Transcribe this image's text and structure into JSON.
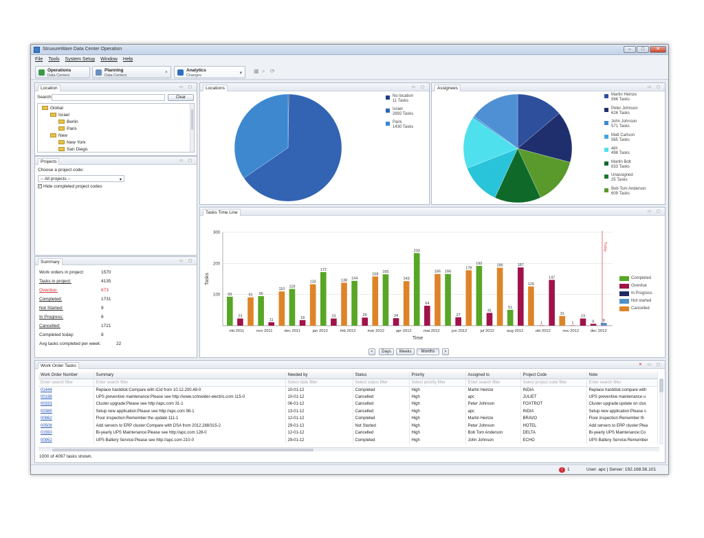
{
  "window": {
    "title": "StruxureWare Data Center Operation",
    "min": "–",
    "max": "□",
    "close": "✕"
  },
  "menu": [
    "File",
    "Tools",
    "System Setup",
    "Window",
    "Help"
  ],
  "perspectives": [
    {
      "title": "Operations",
      "sub": "Data Centers",
      "color": "#3a9a4a"
    },
    {
      "title": "Planning",
      "sub": "Data Centers",
      "color": "#6a8fc0"
    },
    {
      "title": "Analytics",
      "sub": "Changes",
      "color": "#2f6fc2"
    }
  ],
  "location_panel": {
    "tab": "Location",
    "search_label": "Search",
    "clear_btn": "Clear",
    "tree": [
      {
        "label": "Global",
        "level": 0
      },
      {
        "label": "Israel",
        "level": 1
      },
      {
        "label": "Berlin",
        "level": 2
      },
      {
        "label": "Paris",
        "level": 2
      },
      {
        "label": "New",
        "level": 1
      },
      {
        "label": "New York",
        "level": 2
      },
      {
        "label": "San Diego",
        "level": 2
      }
    ]
  },
  "projects_panel": {
    "tab": "Projects",
    "choose_label": "Choose a project code:",
    "select_value": "-- All projects --",
    "hide_completed": "Hide completed project codes"
  },
  "summary_panel": {
    "tab": "Summary",
    "rows": [
      {
        "k": "Work orders in project:",
        "v": "1570"
      },
      {
        "k": "Tasks in project:",
        "v": "4135"
      },
      {
        "k": "Overdue:",
        "v": "673"
      },
      {
        "k": "Completed:",
        "v": "1731"
      },
      {
        "k": "Not Started:",
        "v": "9"
      },
      {
        "k": "In Progress:",
        "v": "8"
      },
      {
        "k": "Cancelled:",
        "v": "1721"
      },
      {
        "k": "Completed today:",
        "v": "8"
      },
      {
        "k": "Avg tasks completed per week:",
        "v": "22"
      }
    ]
  },
  "locations_chart": {
    "tab": "Locations",
    "chart_data": {
      "type": "pie",
      "slices": [
        {
          "label": "No location",
          "sub": "11 Tasks",
          "value": 11,
          "color": "#1f3f86"
        },
        {
          "label": "Israel",
          "sub": "2692 Tasks",
          "value": 2692,
          "color": "#3264b3"
        },
        {
          "label": "Paris",
          "sub": "1430 Tasks",
          "value": 1430,
          "color": "#3d88cf"
        }
      ]
    }
  },
  "assignees_chart": {
    "tab": "Assignees",
    "chart_data": {
      "type": "pie",
      "slices": [
        {
          "label": "Martin Heinze",
          "sub": "566 Tasks",
          "value": 566,
          "color": "#2d4f9c"
        },
        {
          "label": "Peter Johnson",
          "sub": "626 Tasks",
          "value": 626,
          "color": "#1f2f6e"
        },
        {
          "label": "John Johnson",
          "sub": "571 Tasks",
          "value": 571,
          "color": "#5a9a2c"
        },
        {
          "label": "Matt Carlson",
          "sub": "565 Tasks",
          "value": 565,
          "color": "#0f6a2a"
        },
        {
          "label": "apc",
          "sub": "498 Tasks",
          "value": 498,
          "color": "#29c4d9"
        },
        {
          "label": "Martin Bolt",
          "sub": "633 Tasks",
          "value": 633,
          "color": "#4fe0ee"
        },
        {
          "label": "Unassigned",
          "sub": "25 Tasks",
          "value": 25,
          "color": "#46a4dc"
        },
        {
          "label": "Bob Tom Anderson",
          "sub": "609 Tasks",
          "value": 609,
          "color": "#4f90d4"
        }
      ],
      "legend_order": [
        {
          "label": "Martin Heinze",
          "sub": "566 Tasks",
          "color": "#2d4f9c"
        },
        {
          "label": "Peter Johnson",
          "sub": "626 Tasks",
          "color": "#1f2f6e"
        },
        {
          "label": "John Johnson",
          "sub": "571 Tasks",
          "color": "#3d88cf"
        },
        {
          "label": "Matt Carlson",
          "sub": "565 Tasks",
          "color": "#46a4dc"
        },
        {
          "label": "apc",
          "sub": "498 Tasks",
          "color": "#4fe0ee"
        },
        {
          "label": "Martin Bolt",
          "sub": "633 Tasks",
          "color": "#0f6a2a"
        },
        {
          "label": "Unassigned",
          "sub": "25 Tasks",
          "color": "#1a7a30"
        },
        {
          "label": "Bob Tom Anderson",
          "sub": "609 Tasks",
          "color": "#5a9a2c"
        }
      ]
    }
  },
  "timeline_chart": {
    "tab": "Tasks Time Line",
    "today_label": "Today",
    "buttons": {
      "prev": "<",
      "days": "Days",
      "weeks": "Weeks",
      "months": "Months",
      "next": ">"
    },
    "chart_data": {
      "type": "bar",
      "xlabel": "Time",
      "ylabel": "Tasks",
      "ylim": [
        0,
        300
      ],
      "yticks": [
        100,
        200,
        300
      ],
      "categories": [
        "okt 2011",
        "nov 2011",
        "dec 2011",
        "jan 2012",
        "feb 2012",
        "mar 2012",
        "apr 2012",
        "mai 2012",
        "jun 2012",
        "jul 2012",
        "aug 2012",
        "okt 2012",
        "nov 2012",
        "dec 2012"
      ],
      "series": [
        {
          "name": "Completed",
          "color": "#58a626"
        },
        {
          "name": "Overdue",
          "color": "#a0124a"
        },
        {
          "name": "In Progress",
          "color": "#1f2a63"
        },
        {
          "name": "Not started",
          "color": "#4f90cc"
        },
        {
          "name": "Cancelled",
          "color": "#de8428"
        }
      ],
      "bars": [
        {
          "series": "Completed",
          "value": 93
        },
        {
          "series": "Overdue",
          "value": 23
        },
        {
          "series": "Cancelled",
          "value": 91
        },
        {
          "series": "Completed",
          "value": 95
        },
        {
          "series": "Overdue",
          "value": 11
        },
        {
          "series": "Cancelled",
          "value": 110
        },
        {
          "series": "Completed",
          "value": 118
        },
        {
          "series": "Overdue",
          "value": 18
        },
        {
          "series": "Cancelled",
          "value": 133
        },
        {
          "series": "Completed",
          "value": 172
        },
        {
          "series": "Overdue",
          "value": 23
        },
        {
          "series": "Cancelled",
          "value": 138
        },
        {
          "series": "Completed",
          "value": 144
        },
        {
          "series": "Overdue",
          "value": 26
        },
        {
          "series": "Cancelled",
          "value": 158
        },
        {
          "series": "Completed",
          "value": 165
        },
        {
          "series": "Overdue",
          "value": 24
        },
        {
          "series": "Cancelled",
          "value": 143
        },
        {
          "series": "Completed",
          "value": 233
        },
        {
          "series": "Overdue",
          "value": 64
        },
        {
          "series": "Cancelled",
          "value": 166
        },
        {
          "series": "Completed",
          "value": 166
        },
        {
          "series": "Overdue",
          "value": 27
        },
        {
          "series": "Cancelled",
          "value": 178
        },
        {
          "series": "Completed",
          "value": 192
        },
        {
          "series": "Overdue",
          "value": 41
        },
        {
          "series": "Cancelled",
          "value": 186
        },
        {
          "series": "Completed",
          "value": 51
        },
        {
          "series": "Overdue",
          "value": 187
        },
        {
          "series": "Cancelled",
          "value": 126
        },
        {
          "series": "Overdue",
          "value": 1
        },
        {
          "series": "Overdue",
          "value": 147
        },
        {
          "series": "Cancelled",
          "value": 31
        },
        {
          "series": "Overdue",
          "value": 1
        },
        {
          "series": "Overdue",
          "value": 23
        },
        {
          "series": "Overdue",
          "value": 6
        },
        {
          "series": "Not started",
          "value": 9
        }
      ]
    }
  },
  "work_orders": {
    "tab": "Work Order Tasks",
    "columns": [
      "Work Order Number",
      "Summary",
      "Needed by",
      "Status",
      "Priority",
      "Assigned to",
      "Project Code",
      "Note"
    ],
    "filters": [
      "Enter search filter",
      "Enter search filter",
      "Select date filter",
      "Select status filter",
      "Select priority filter",
      "Enter search filter",
      "Select project code filter",
      "Enter search filter"
    ],
    "rows": [
      [
        "01444",
        "Replace harddisk:Compare with iCid from 10.12.200.48-0",
        "10-01-12",
        "Completed",
        "High",
        "Martin Heinze",
        "INDIA",
        "Replace harddisk:compare with"
      ],
      [
        "00198",
        "UPS preventive maintenance:Please see http://www.schneider-electric.com 115-0",
        "10-01-12",
        "Cancelled",
        "High",
        "apc",
        "JULIET",
        "UPS preventive maintenance u"
      ],
      [
        "00333",
        "Cluster upgrade:Please see http://apc.com 31-1",
        "06-01-12",
        "Cancelled",
        "High",
        "Peter Johnson",
        "FOXTROT",
        "Cluster upgrade:update on clus"
      ],
      [
        "00385",
        "Setup new application:Please see http://apc.com 98-1",
        "13-01-12",
        "Cancelled",
        "High",
        "apc",
        "INDIA",
        "Setup new application:Please s"
      ],
      [
        "00862",
        "Floor inspection:Remember the update 111-1",
        "12-01-12",
        "Completed",
        "High",
        "Martin Heinze",
        "BRAVO",
        "Floor inspection:Remember th"
      ],
      [
        "00508",
        "Add servers to ERP cluster:Compare with DSA from 2012.288/315-2",
        "29-01-12",
        "Not Started",
        "High",
        "Peter Johnson",
        "HOTEL",
        "Add servers to ERP cluster:Plea"
      ],
      [
        "01550",
        "Bi-yearly UPS Maintenance:Please see http://apc.com 128-0",
        "12-01-12",
        "Cancelled",
        "High",
        "Bob Tom Anderson",
        "DELTA",
        "Bi-yearly UPS Maintenance:Co"
      ],
      [
        "00952",
        "UPS Battery Service:Please see http://apc.com 210-0",
        "29-01-12",
        "Completed",
        "High",
        "John Johnson",
        "ECHO",
        "UPS Battery Service:Remember"
      ]
    ],
    "footer": "1000 of 4097 tasks shown."
  },
  "status": {
    "alert_count": "1",
    "user": "User: apc | Server: 192.168.56.101"
  }
}
